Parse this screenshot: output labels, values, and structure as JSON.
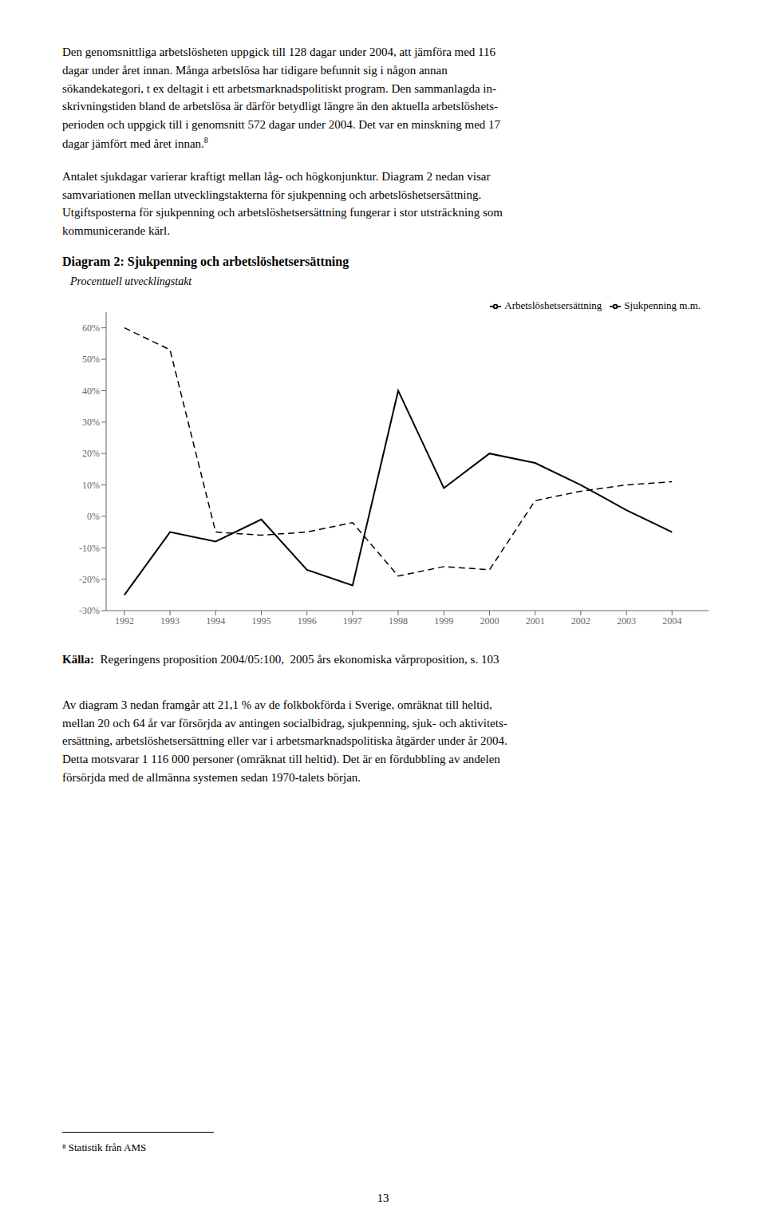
{
  "chart_data": {
    "type": "line",
    "title": "Diagram 2: Sjukpenning och arbetslöshetsersättning",
    "y_label": "Procentuell utvecklingstakt",
    "source_label": "Källa:",
    "source": "Regeringens proposition 2004/05:100,  2005 års ekonomiska vårproposition, s. 103",
    "x": [
      1992,
      1993,
      1994,
      1995,
      1996,
      1997,
      1998,
      1999,
      2000,
      2001,
      2002,
      2003,
      2004
    ],
    "series": [
      {
        "name": "Sjukpenning m.m.",
        "color": "#000000",
        "line_style": "solid",
        "values": [
          -25,
          -5,
          -8,
          -1,
          -17,
          -22,
          40,
          9,
          20,
          17,
          10,
          2,
          -5
        ]
      },
      {
        "name": "Arbetslöshetsersättning",
        "color": "#000000",
        "line_style": "dashed",
        "values": [
          60,
          53,
          -5,
          -6,
          -5,
          -2,
          -19,
          -16,
          -17,
          5,
          8,
          10,
          11
        ]
      }
    ],
    "xlim": [
      1991.6,
      2004.8
    ],
    "xticks": [
      1992,
      1993,
      1994,
      1995,
      1996,
      1997,
      1998,
      1999,
      2000,
      2001,
      2002,
      2003,
      2004
    ],
    "ylim": [
      -30,
      65
    ],
    "yticks": [
      {
        "value": 60,
        "label": "60%"
      },
      {
        "value": 50,
        "label": "50%"
      },
      {
        "value": 40,
        "label": "40%"
      },
      {
        "value": 30,
        "label": "30%"
      },
      {
        "value": 20,
        "label": "20%"
      },
      {
        "value": 10,
        "label": "10%"
      },
      {
        "value": 0,
        "label": "0%"
      },
      {
        "value": -10,
        "label": "-10%"
      },
      {
        "value": -20,
        "label": "-20%"
      },
      {
        "value": -30,
        "label": "-30%"
      }
    ],
    "grid": false,
    "legend": "upper right"
  },
  "page": {
    "paragraphs_before": [
      [
        "Den genomsnittliga arbetslösheten uppgick till 128 dagar under 2004, att jämföra med 116",
        "dagar under året innan. Många arbetslösa har tidigare befunnit sig i någon annan",
        "sökandekategori, t ex deltagit i ett arbetsmarknadspolitiskt program. Den sammanlagda in-",
        "skrivningstiden bland de arbetslösa är därför betydligt längre än den aktuella arbetslöshets-",
        "perioden och uppgick till i genomsnitt 572 dagar under 2004. Det var en minskning med 17",
        "dagar jämfört med året innan."
      ],
      [
        "Antalet sjukdagar varierar kraftigt mellan låg- och högkonjunktur. Diagram 2 nedan visar",
        "samvariationen mellan utvecklingstakterna för sjukpenning och arbetslöshetsersättning.",
        "Utgiftsposterna för sjukpenning och arbetslöshetsersättning fungerar i stor utsträckning som",
        "kommunicerande kärl."
      ]
    ],
    "footnote_mark": "8",
    "paragraphs_after": [
      [
        "Av diagram 3 nedan framgår att 21,1 % av de folkbokförda i Sverige, omräknat till heltid,",
        "mellan 20 och 64 år var försörjda av antingen socialbidrag, sjukpenning, sjuk- och aktivitets-",
        "ersättning, arbetslöshetsersättning eller var i arbetsmarknadspolitiska åtgärder under år 2004.",
        "Detta motsvarar 1 116 000 personer (omräknat till heltid). Det är en fördubbling av andelen",
        "försörjda med de allmänna systemen sedan 1970-talets början."
      ]
    ],
    "footnote": "⁸ Statistik från AMS",
    "page_number": "13"
  }
}
